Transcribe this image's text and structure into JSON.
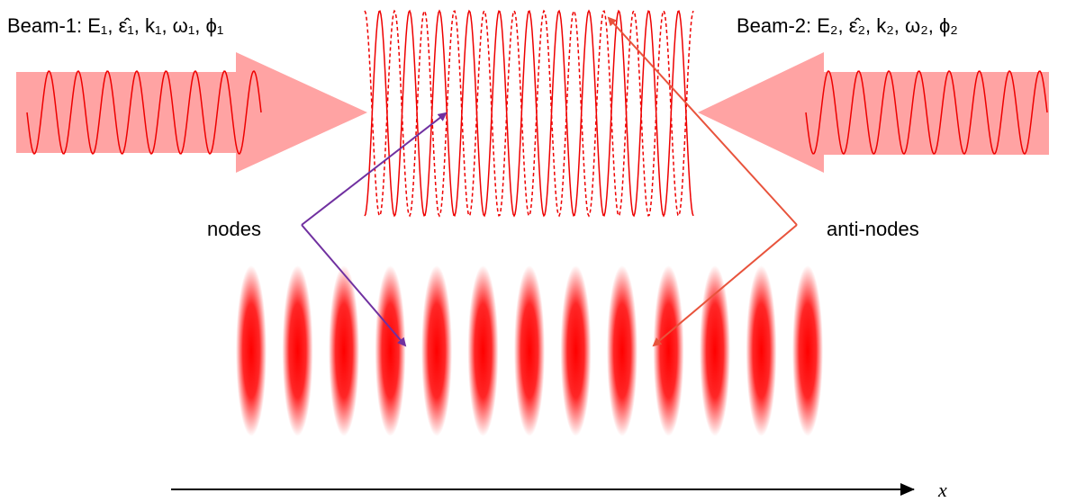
{
  "beam_1": {
    "label": "Beam-1: E₁, ε̂₁, k₁, ω₁, ϕ₁"
  },
  "beam_2": {
    "label": "Beam-2: E₂, ε̂₂, k₂, ω₂, ϕ₂"
  },
  "nodes_label": "nodes",
  "anti_nodes_label": "anti-nodes",
  "axis_label": "x"
}
